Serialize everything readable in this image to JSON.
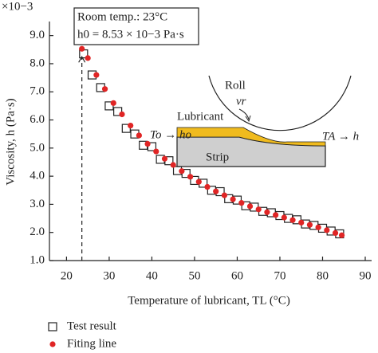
{
  "chart_data": {
    "type": "scatter",
    "y_multiplier": "×10−3",
    "xlabel": "Temperature of lubricant, TL (°C)",
    "ylabel": "Viscosity, h (Pa·s)",
    "xlim": [
      16,
      90
    ],
    "xticks": [
      20,
      30,
      40,
      50,
      60,
      70,
      80,
      90
    ],
    "ylim": [
      1.0,
      9.5
    ],
    "yticks": [
      {
        "value": 1,
        "label": "1.0"
      },
      {
        "value": 2,
        "label": "2.0"
      },
      {
        "value": 3,
        "label": "3.0"
      },
      {
        "value": 4,
        "label": "4.0"
      },
      {
        "value": 5,
        "label": "5.0"
      },
      {
        "value": 6,
        "label": "6.0"
      },
      {
        "value": 7,
        "label": "7.0"
      },
      {
        "value": 8,
        "label": "8.0"
      },
      {
        "value": 9,
        "label": "9.0"
      }
    ],
    "annotations": {
      "room_temp": "Room temp.: 23°C",
      "h0": "h0 = 8.53 × 10−3 Pa·s",
      "roll": "Roll",
      "vr": "vr",
      "lubricant": "Lubricant",
      "inlet": "To → ho",
      "outlet": "TA → h",
      "strip": "Strip"
    },
    "reference_x": 23.6,
    "series": [
      {
        "name": "Test result",
        "marker": "square",
        "color": "#222222",
        "x": [
          24,
          26,
          28,
          30,
          32,
          34,
          36,
          38,
          40,
          42,
          44,
          46,
          48,
          50,
          52,
          54,
          56,
          58,
          60,
          62,
          64,
          66,
          68,
          70,
          72,
          74,
          76,
          78,
          80,
          82,
          84
        ],
        "values": [
          8.35,
          7.6,
          7.15,
          6.5,
          6.3,
          5.7,
          5.5,
          5.1,
          5.05,
          4.6,
          4.55,
          4.2,
          4.1,
          3.85,
          3.75,
          3.5,
          3.45,
          3.2,
          3.15,
          2.95,
          2.9,
          2.75,
          2.7,
          2.6,
          2.5,
          2.45,
          2.3,
          2.25,
          2.15,
          2.05,
          1.95
        ]
      },
      {
        "name": "Fiting line",
        "marker": "dot",
        "color": "#e02525",
        "x": [
          23.6,
          25,
          27,
          29,
          31,
          33,
          35,
          37,
          39,
          41,
          43,
          45,
          47,
          49,
          51,
          53,
          55,
          57,
          59,
          61,
          63,
          65,
          67,
          69,
          71,
          73,
          75,
          77,
          79,
          81,
          83,
          84.5
        ],
        "values": [
          8.53,
          8.2,
          7.6,
          7.1,
          6.6,
          6.2,
          5.8,
          5.45,
          5.15,
          4.88,
          4.62,
          4.4,
          4.18,
          3.98,
          3.8,
          3.62,
          3.46,
          3.32,
          3.18,
          3.05,
          2.93,
          2.82,
          2.72,
          2.62,
          2.53,
          2.44,
          2.35,
          2.27,
          2.18,
          2.08,
          1.98,
          1.9
        ]
      }
    ]
  }
}
